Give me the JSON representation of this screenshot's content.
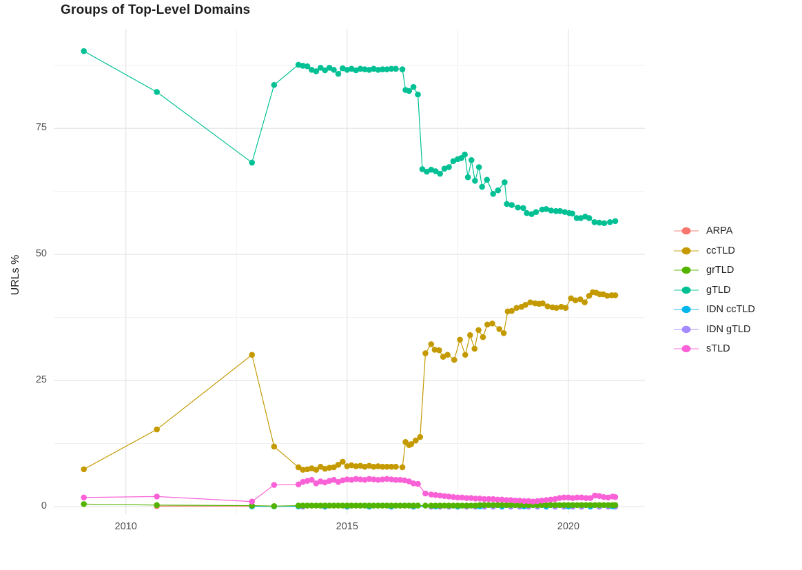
{
  "figure": {
    "background": "#ffffff"
  },
  "chart_data": {
    "type": "scatter",
    "title": "Groups of Top-Level Domains",
    "xlabel": "",
    "ylabel": "URLs %",
    "x_ticks": [
      2010,
      2015,
      2020
    ],
    "x_minor_gridlines": [
      2012.5,
      2017.5
    ],
    "y_ticks": [
      0,
      25,
      50,
      75
    ],
    "y_minor_gridlines": [
      12.5,
      37.5,
      62.5,
      87.5
    ],
    "xlim": [
      2008.37,
      2021.73
    ],
    "ylim": [
      -1.5,
      94.7
    ],
    "grid": "major+minor",
    "legend_position": "right",
    "marker_style": "point-with-line",
    "series": [
      {
        "name": "ARPA",
        "color": "#F8766D",
        "x": [
          2010.7,
          2012.85
        ],
        "y": [
          0.1,
          0.1
        ]
      },
      {
        "name": "ccTLD",
        "color": "#C49A00",
        "x": [
          2009.05,
          2010.7,
          2012.85,
          2013.35,
          2013.9,
          2014.0,
          2014.1,
          2014.2,
          2014.3,
          2014.4,
          2014.5,
          2014.6,
          2014.7,
          2014.8,
          2014.9,
          2015.0,
          2015.1,
          2015.2,
          2015.3,
          2015.4,
          2015.5,
          2015.6,
          2015.7,
          2015.8,
          2015.9,
          2016.0,
          2016.1,
          2016.25,
          2016.32,
          2016.4,
          2016.45,
          2016.55,
          2016.65,
          2016.77,
          2016.9,
          2016.98,
          2017.08,
          2017.17,
          2017.27,
          2017.42,
          2017.55,
          2017.67,
          2017.78,
          2017.88,
          2017.97,
          2018.07,
          2018.17,
          2018.28,
          2018.44,
          2018.54,
          2018.63,
          2018.72,
          2018.83,
          2018.94,
          2019.03,
          2019.14,
          2019.25,
          2019.34,
          2019.42,
          2019.53,
          2019.64,
          2019.73,
          2019.84,
          2019.94,
          2020.06,
          2020.16,
          2020.27,
          2020.37,
          2020.47,
          2020.55,
          2020.63,
          2020.71,
          2020.79,
          2020.88,
          2020.98,
          2021.06
        ],
        "y": [
          7.4,
          15.3,
          30.1,
          11.9,
          7.8,
          7.3,
          7.4,
          7.6,
          7.3,
          7.9,
          7.5,
          7.7,
          7.8,
          8.3,
          8.9,
          8.0,
          8.2,
          8.0,
          8.1,
          7.9,
          8.1,
          7.9,
          8.0,
          7.9,
          7.9,
          7.9,
          7.9,
          7.8,
          12.8,
          12.2,
          12.4,
          13.1,
          13.8,
          30.4,
          32.2,
          31.1,
          31.0,
          29.7,
          30.1,
          29.1,
          33.1,
          30.1,
          34.0,
          31.3,
          35.0,
          33.6,
          36.1,
          36.3,
          35.2,
          34.4,
          38.7,
          38.8,
          39.4,
          39.6,
          40.0,
          40.5,
          40.3,
          40.2,
          40.3,
          39.7,
          39.5,
          39.4,
          39.6,
          39.4,
          41.3,
          40.9,
          41.1,
          40.5,
          41.8,
          42.5,
          42.4,
          42.1,
          42.1,
          41.8,
          41.9,
          41.9
        ]
      },
      {
        "name": "grTLD",
        "color": "#53B400",
        "x": [
          2009.05,
          2010.7,
          2012.85,
          2013.35,
          2013.9,
          2014.0,
          2014.1,
          2014.2,
          2014.3,
          2014.4,
          2014.5,
          2014.6,
          2014.7,
          2014.8,
          2014.9,
          2015.0,
          2015.1,
          2015.2,
          2015.3,
          2015.4,
          2015.5,
          2015.6,
          2015.7,
          2015.8,
          2015.9,
          2016.0,
          2016.1,
          2016.2,
          2016.3,
          2016.4,
          2016.5,
          2016.6,
          2016.77,
          2016.9,
          2017.0,
          2017.1,
          2017.2,
          2017.3,
          2017.4,
          2017.5,
          2017.6,
          2017.7,
          2017.8,
          2017.9,
          2018.0,
          2018.1,
          2018.2,
          2018.3,
          2018.4,
          2018.5,
          2018.6,
          2018.7,
          2018.8,
          2018.9,
          2019.0,
          2019.1,
          2019.2,
          2019.3,
          2019.4,
          2019.5,
          2019.6,
          2019.7,
          2019.8,
          2019.9,
          2020.0,
          2020.1,
          2020.2,
          2020.3,
          2020.4,
          2020.5,
          2020.6,
          2020.7,
          2020.8,
          2020.9,
          2021.0,
          2021.06
        ],
        "y": [
          0.5,
          0.3,
          0.2,
          0.1,
          0.2,
          0.2,
          0.2,
          0.2,
          0.2,
          0.2,
          0.2,
          0.2,
          0.2,
          0.2,
          0.2,
          0.2,
          0.2,
          0.2,
          0.2,
          0.2,
          0.2,
          0.2,
          0.2,
          0.2,
          0.2,
          0.2,
          0.2,
          0.2,
          0.2,
          0.2,
          0.2,
          0.2,
          0.2,
          0.2,
          0.2,
          0.2,
          0.2,
          0.2,
          0.2,
          0.2,
          0.2,
          0.2,
          0.2,
          0.2,
          0.3,
          0.3,
          0.3,
          0.3,
          0.3,
          0.3,
          0.3,
          0.3,
          0.3,
          0.3,
          0.3,
          0.3,
          0.3,
          0.3,
          0.3,
          0.3,
          0.3,
          0.3,
          0.3,
          0.3,
          0.3,
          0.3,
          0.3,
          0.3,
          0.3,
          0.3,
          0.3,
          0.3,
          0.3,
          0.3,
          0.3,
          0.3
        ]
      },
      {
        "name": "gTLD",
        "color": "#00C094",
        "x": [
          2009.05,
          2010.7,
          2012.85,
          2013.35,
          2013.9,
          2014.0,
          2014.1,
          2014.2,
          2014.3,
          2014.4,
          2014.5,
          2014.6,
          2014.7,
          2014.8,
          2014.9,
          2015.0,
          2015.1,
          2015.2,
          2015.3,
          2015.4,
          2015.5,
          2015.6,
          2015.7,
          2015.8,
          2015.9,
          2016.0,
          2016.1,
          2016.25,
          2016.32,
          2016.4,
          2016.5,
          2016.6,
          2016.7,
          2016.8,
          2016.9,
          2017.0,
          2017.1,
          2017.2,
          2017.3,
          2017.4,
          2017.5,
          2017.58,
          2017.66,
          2017.73,
          2017.81,
          2017.89,
          2017.98,
          2018.05,
          2018.16,
          2018.3,
          2018.41,
          2018.56,
          2018.61,
          2018.72,
          2018.86,
          2018.98,
          2019.06,
          2019.17,
          2019.27,
          2019.41,
          2019.5,
          2019.61,
          2019.72,
          2019.81,
          2019.92,
          2020.02,
          2020.09,
          2020.19,
          2020.28,
          2020.38,
          2020.47,
          2020.59,
          2020.7,
          2020.81,
          2020.94,
          2021.06
        ],
        "y": [
          90.3,
          82.2,
          68.2,
          83.6,
          87.6,
          87.4,
          87.3,
          86.6,
          86.3,
          87.0,
          86.5,
          87.0,
          86.6,
          85.8,
          86.9,
          86.6,
          86.8,
          86.5,
          86.8,
          86.7,
          86.6,
          86.8,
          86.6,
          86.7,
          86.7,
          86.8,
          86.8,
          86.7,
          82.6,
          82.4,
          83.2,
          81.7,
          66.9,
          66.4,
          66.8,
          66.5,
          66.0,
          67.0,
          67.3,
          68.5,
          68.9,
          69.1,
          69.8,
          65.3,
          68.7,
          64.6,
          67.3,
          63.4,
          64.8,
          62.0,
          62.7,
          64.3,
          60.0,
          59.8,
          59.3,
          59.2,
          58.2,
          58.0,
          58.4,
          58.9,
          59.0,
          58.7,
          58.6,
          58.6,
          58.4,
          58.2,
          58.1,
          57.2,
          57.2,
          57.5,
          57.2,
          56.4,
          56.3,
          56.2,
          56.4,
          56.6
        ]
      },
      {
        "name": "IDN ccTLD",
        "color": "#00B6EB",
        "x": [
          2012.85,
          2013.35,
          2013.9,
          2014.5,
          2015.0,
          2015.5,
          2016.0,
          2016.5,
          2017.0,
          2017.5,
          2018.0,
          2018.5,
          2019.0,
          2019.5,
          2020.0,
          2020.5,
          2021.0
        ],
        "y": [
          0.05,
          0.05,
          0.05,
          0.05,
          0.05,
          0.05,
          0.05,
          0.05,
          0.05,
          0.05,
          0.05,
          0.05,
          0.05,
          0.05,
          0.05,
          0.05,
          0.05
        ]
      },
      {
        "name": "IDN gTLD",
        "color": "#A58AFF",
        "x": [
          2014.0,
          2014.5,
          2015.0,
          2015.5,
          2016.0,
          2016.5,
          2016.9,
          2017.1,
          2017.3,
          2017.5,
          2017.7,
          2017.9,
          2018.1,
          2018.3,
          2018.5,
          2018.7,
          2018.9,
          2019.1,
          2019.3,
          2019.5,
          2019.7,
          2019.9,
          2020.1,
          2020.3,
          2020.5,
          2020.7,
          2020.9,
          2021.06
        ],
        "y": [
          0.0,
          0.0,
          0.0,
          0.0,
          0.0,
          0.0,
          0.0,
          0.0,
          0.0,
          0.0,
          0.0,
          0.0,
          0.0,
          0.0,
          0.0,
          0.0,
          0.0,
          0.0,
          0.0,
          0.0,
          0.0,
          0.0,
          0.0,
          0.0,
          0.0,
          0.0,
          0.0,
          0.0
        ]
      },
      {
        "name": "sTLD",
        "color": "#FB61D7",
        "x": [
          2009.05,
          2010.7,
          2012.85,
          2013.35,
          2013.9,
          2014.0,
          2014.1,
          2014.2,
          2014.3,
          2014.4,
          2014.5,
          2014.6,
          2014.7,
          2014.8,
          2014.9,
          2015.0,
          2015.1,
          2015.2,
          2015.3,
          2015.4,
          2015.5,
          2015.6,
          2015.7,
          2015.8,
          2015.9,
          2016.0,
          2016.1,
          2016.2,
          2016.3,
          2016.4,
          2016.5,
          2016.6,
          2016.77,
          2016.9,
          2017.0,
          2017.1,
          2017.2,
          2017.3,
          2017.4,
          2017.5,
          2017.6,
          2017.7,
          2017.8,
          2017.9,
          2018.0,
          2018.1,
          2018.2,
          2018.3,
          2018.4,
          2018.5,
          2018.6,
          2018.7,
          2018.8,
          2018.9,
          2019.0,
          2019.1,
          2019.2,
          2019.3,
          2019.4,
          2019.5,
          2019.6,
          2019.7,
          2019.8,
          2019.9,
          2020.0,
          2020.1,
          2020.2,
          2020.3,
          2020.4,
          2020.5,
          2020.6,
          2020.7,
          2020.8,
          2020.9,
          2021.0,
          2021.06
        ],
        "y": [
          1.8,
          2.0,
          1.0,
          4.3,
          4.4,
          4.9,
          5.1,
          5.3,
          4.6,
          5.0,
          4.8,
          5.1,
          5.3,
          4.9,
          5.2,
          5.4,
          5.3,
          5.5,
          5.4,
          5.3,
          5.5,
          5.4,
          5.3,
          5.4,
          5.5,
          5.4,
          5.3,
          5.3,
          5.2,
          5.0,
          4.6,
          4.5,
          2.6,
          2.4,
          2.3,
          2.2,
          2.1,
          2.0,
          1.9,
          1.8,
          1.8,
          1.7,
          1.7,
          1.6,
          1.6,
          1.5,
          1.5,
          1.5,
          1.4,
          1.4,
          1.3,
          1.3,
          1.2,
          1.2,
          1.1,
          1.1,
          1.0,
          1.1,
          1.2,
          1.3,
          1.4,
          1.5,
          1.7,
          1.8,
          1.8,
          1.7,
          1.8,
          1.8,
          1.7,
          1.7,
          2.2,
          2.1,
          1.9,
          1.8,
          2.0,
          1.9
        ]
      }
    ]
  }
}
